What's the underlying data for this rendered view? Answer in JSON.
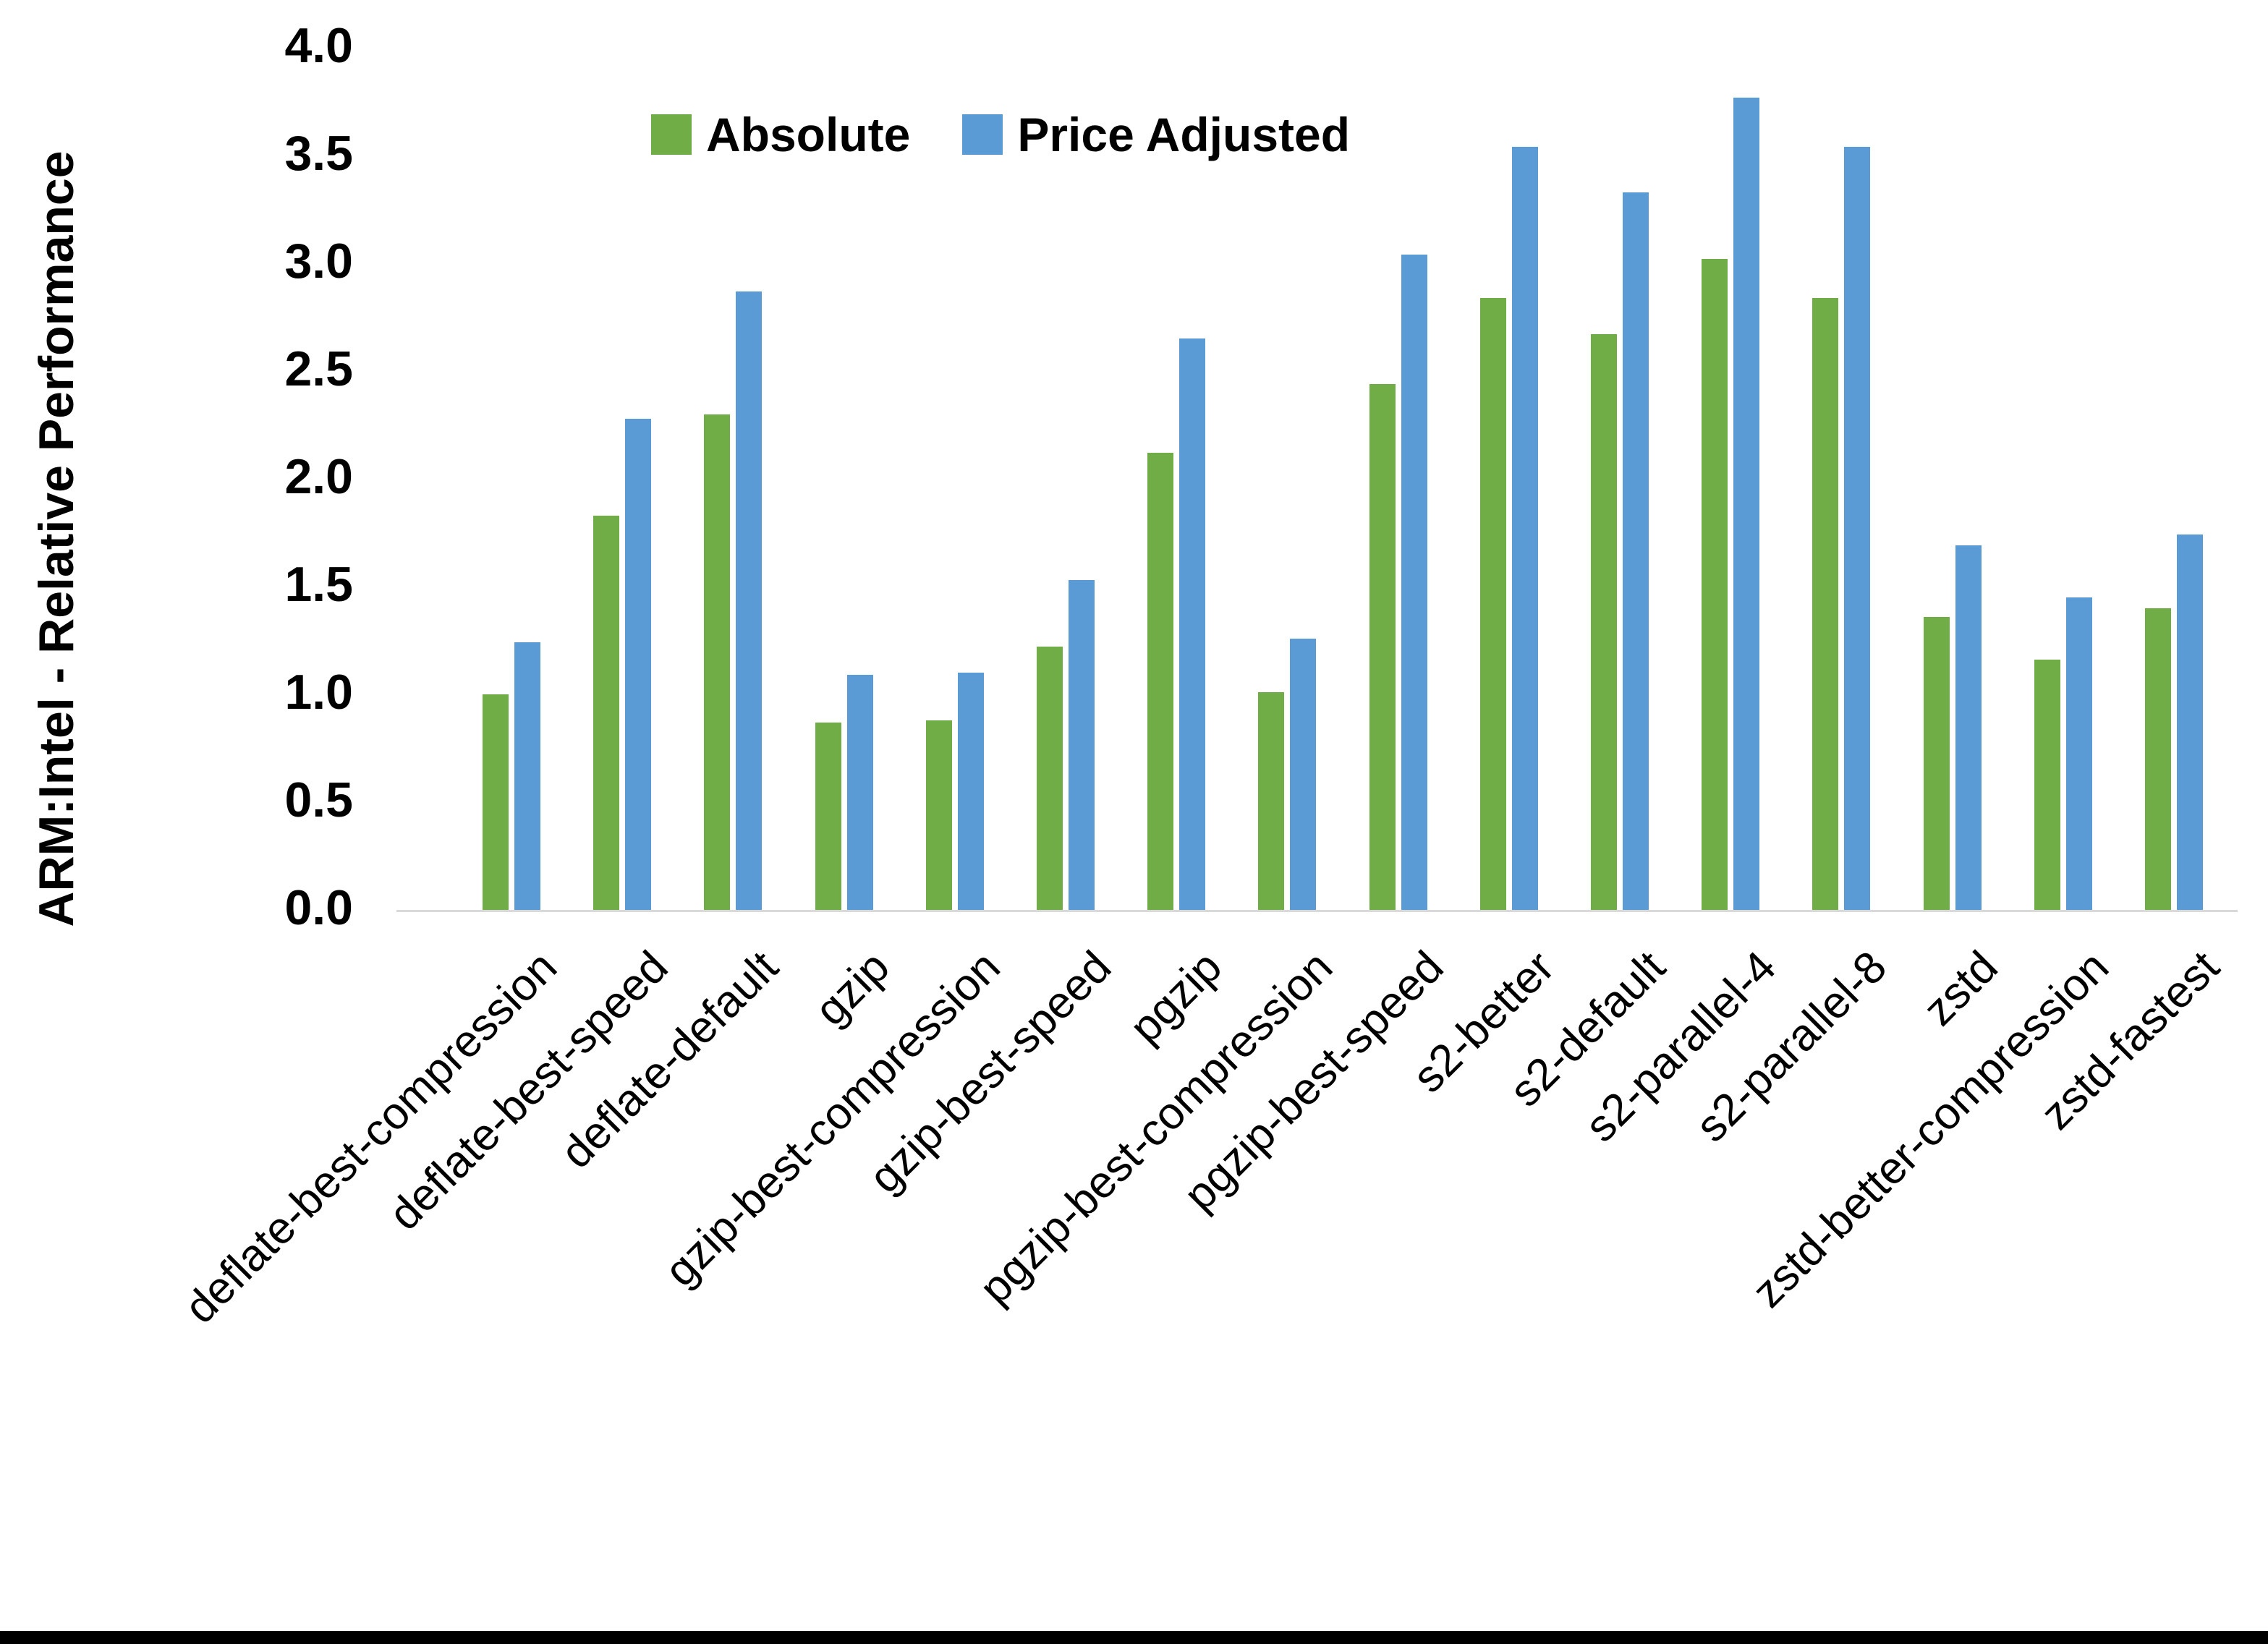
{
  "chart_data": {
    "type": "bar",
    "title": "",
    "xlabel": "",
    "ylabel": "ARM:Intel - Relative Performance",
    "categories": [
      "deflate-best-compression",
      "deflate-best-speed",
      "deflate-default",
      "gzip",
      "gzip-best-compression",
      "gzip-best-speed",
      "pgzip",
      "pgzip-best-compression",
      "pgzip-best-speed",
      "s2-better",
      "s2-default",
      "s2-parallel-4",
      "s2-parallel-8",
      "zstd",
      "zstd-better-compression",
      "zstd-fastest"
    ],
    "series": [
      {
        "name": "Absolute",
        "color": "#70AD47",
        "values": [
          1.0,
          1.83,
          2.3,
          0.87,
          0.88,
          1.22,
          2.12,
          1.01,
          2.44,
          2.84,
          2.67,
          3.02,
          2.84,
          1.36,
          1.16,
          1.4
        ]
      },
      {
        "name": "Price Adjusted",
        "color": "#5B9BD5",
        "values": [
          1.24,
          2.28,
          2.87,
          1.09,
          1.1,
          1.53,
          2.65,
          1.26,
          3.04,
          3.54,
          3.33,
          3.77,
          3.54,
          1.69,
          1.45,
          1.74
        ]
      }
    ],
    "ylim": [
      0.0,
      4.0
    ],
    "ytick_labels": [
      "0.0",
      "0.5",
      "1.0",
      "1.5",
      "2.0",
      "2.5",
      "3.0",
      "3.5",
      "4.0"
    ],
    "grid": "off",
    "legend_position": "top-center",
    "axis_line_color": "#D9D9D9",
    "bottom_border_color": "#000000",
    "background_color": "#FFFFFF"
  }
}
